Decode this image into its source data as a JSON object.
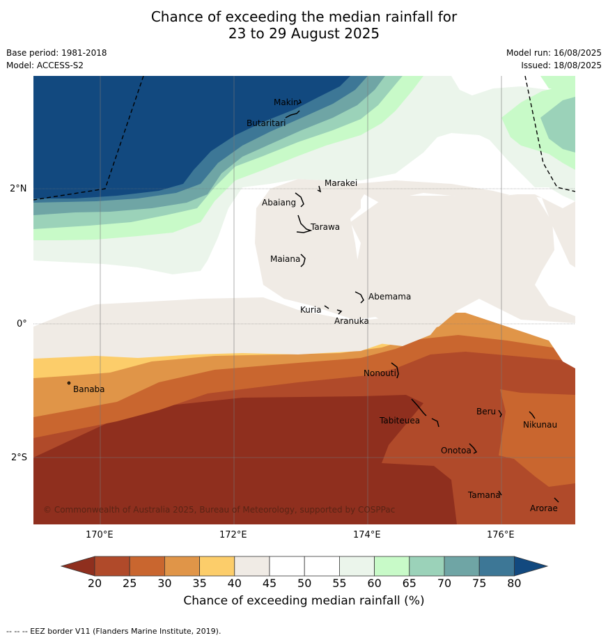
{
  "title_line1": "Chance of exceeding the median rainfall for",
  "title_line2": "23 to 29 August 2025",
  "base_period": "Base period: 1981-2018",
  "model": "Model: ACCESS-S2",
  "model_run": "Model run: 16/08/2025",
  "issued": "Issued: 18/08/2025",
  "lon_labels": [
    "170°E",
    "172°E",
    "174°E",
    "176°E"
  ],
  "lat_labels": [
    "2°N",
    "0°",
    "2°S"
  ],
  "places": [
    "Makin",
    "Butaritari",
    "Marakei",
    "Abaiang",
    "Tarawa",
    "Maiana",
    "Abemama",
    "Kuria",
    "Aranuka",
    "Banaba",
    "Nonouti",
    "Tabiteuea",
    "Beru",
    "Nikunau",
    "Onotoa",
    "Tamana",
    "Arorae"
  ],
  "copyright": "© Commonwealth of Australia 2025, Bureau of Meteorology, supported by COSPPac",
  "colorbar": {
    "ticks": [
      "20",
      "25",
      "30",
      "35",
      "40",
      "45",
      "50",
      "55",
      "60",
      "65",
      "70",
      "75",
      "80"
    ],
    "title": "Chance of exceeding median rainfall (%)",
    "colors": [
      "#8f2f1e",
      "#b04a2a",
      "#c9662f",
      "#e09548",
      "#fccd6a",
      "#f0ebe5",
      "#ffffff",
      "#ffffff",
      "#ebf5eb",
      "#c8fac8",
      "#9bd2b9",
      "#6fa5a5",
      "#3d7796",
      "#12497f"
    ]
  },
  "footer": "--  --  -- EEZ border V11 (Flanders Marine Institute, 2019)."
}
